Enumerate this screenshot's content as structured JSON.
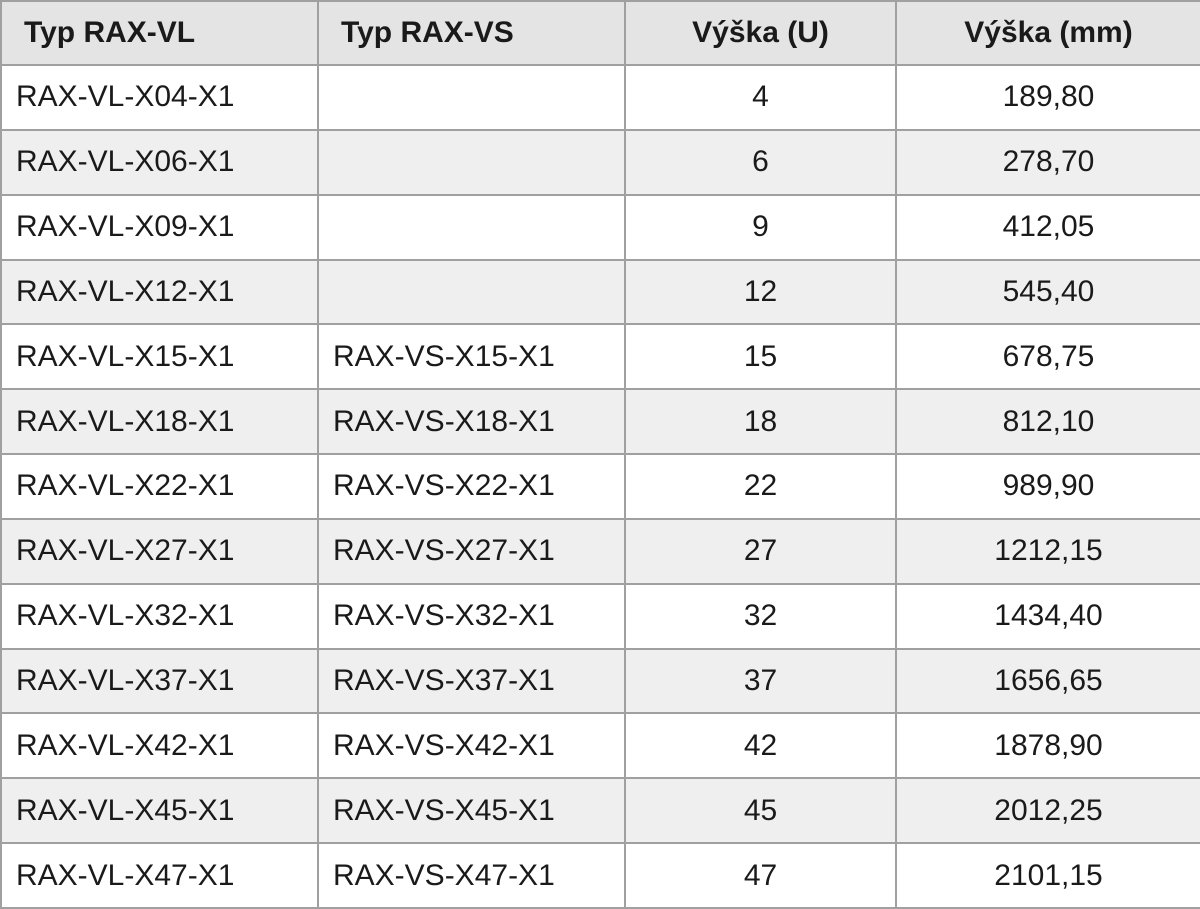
{
  "table": {
    "header": [
      "Typ RAX-VL",
      "Typ RAX-VS",
      "Výška (U)",
      "Výška (mm)"
    ],
    "rows": [
      [
        "RAX-VL-X04-X1",
        null,
        "4",
        "189,80"
      ],
      [
        "RAX-VL-X06-X1",
        null,
        "6",
        "278,70"
      ],
      [
        "RAX-VL-X09-X1",
        null,
        "9",
        "412,05"
      ],
      [
        "RAX-VL-X12-X1",
        null,
        "12",
        "545,40"
      ],
      [
        "RAX-VL-X15-X1",
        "RAX-VS-X15-X1",
        "15",
        "678,75"
      ],
      [
        "RAX-VL-X18-X1",
        "RAX-VS-X18-X1",
        "18",
        "812,10"
      ],
      [
        "RAX-VL-X22-X1",
        "RAX-VS-X22-X1",
        "22",
        "989,90"
      ],
      [
        "RAX-VL-X27-X1",
        "RAX-VS-X27-X1",
        "27",
        "1212,15"
      ],
      [
        "RAX-VL-X32-X1",
        "RAX-VS-X32-X1",
        "32",
        "1434,40"
      ],
      [
        "RAX-VL-X37-X1",
        "RAX-VS-X37-X1",
        "37",
        "1656,65"
      ],
      [
        "RAX-VL-X42-X1",
        "RAX-VS-X42-X1",
        "42",
        "1878,90"
      ],
      [
        "RAX-VL-X45-X1",
        "RAX-VS-X45-X1",
        "45",
        "2012,25"
      ],
      [
        "RAX-VL-X47-X1",
        "RAX-VS-X47-X1",
        "47",
        "2101,15"
      ]
    ]
  }
}
